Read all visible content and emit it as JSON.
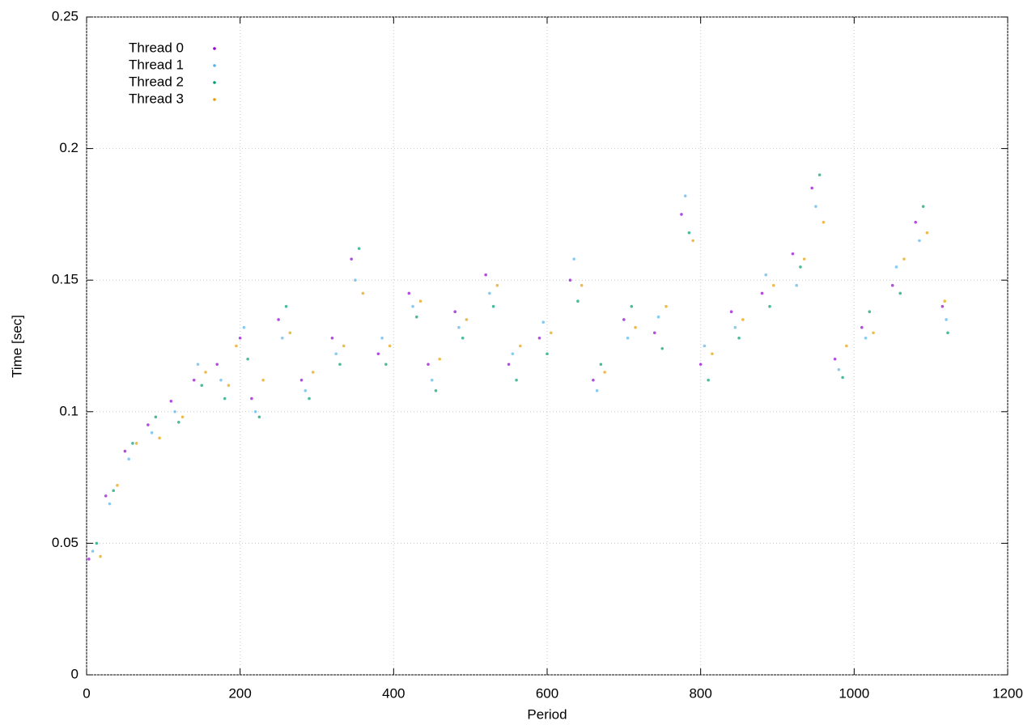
{
  "chart_data": {
    "type": "scatter",
    "xlabel": "Period",
    "ylabel": "Time [sec]",
    "xlim": [
      0,
      1200
    ],
    "ylim": [
      0,
      0.25
    ],
    "xticks": [
      0,
      200,
      400,
      600,
      800,
      1000,
      1200
    ],
    "yticks": [
      0,
      0.05,
      0.1,
      0.15,
      0.2,
      0.25
    ],
    "grid": true,
    "legend": "top-left",
    "series": [
      {
        "name": "Thread 0",
        "color": "#9400d3",
        "x": [
          3,
          25,
          50,
          80,
          110,
          140,
          170,
          200,
          215,
          250,
          280,
          320,
          345,
          380,
          420,
          445,
          480,
          520,
          550,
          590,
          630,
          660,
          700,
          740,
          775,
          800,
          840,
          880,
          920,
          945,
          975,
          1010,
          1050,
          1080,
          1115
        ],
        "values": [
          0.044,
          0.068,
          0.085,
          0.095,
          0.104,
          0.112,
          0.118,
          0.128,
          0.105,
          0.135,
          0.112,
          0.128,
          0.158,
          0.122,
          0.145,
          0.118,
          0.138,
          0.152,
          0.118,
          0.128,
          0.15,
          0.112,
          0.135,
          0.13,
          0.175,
          0.118,
          0.138,
          0.145,
          0.16,
          0.185,
          0.12,
          0.132,
          0.148,
          0.172,
          0.14
        ]
      },
      {
        "name": "Thread 1",
        "color": "#56b4e9",
        "x": [
          8,
          30,
          55,
          85,
          115,
          145,
          175,
          205,
          220,
          255,
          285,
          325,
          350,
          385,
          425,
          450,
          485,
          525,
          555,
          595,
          635,
          665,
          705,
          745,
          780,
          805,
          845,
          885,
          925,
          950,
          980,
          1015,
          1055,
          1085,
          1120
        ],
        "values": [
          0.047,
          0.065,
          0.082,
          0.092,
          0.1,
          0.118,
          0.112,
          0.132,
          0.1,
          0.128,
          0.108,
          0.122,
          0.15,
          0.128,
          0.14,
          0.112,
          0.132,
          0.145,
          0.122,
          0.134,
          0.158,
          0.108,
          0.128,
          0.136,
          0.182,
          0.125,
          0.132,
          0.152,
          0.148,
          0.178,
          0.116,
          0.128,
          0.155,
          0.165,
          0.135
        ]
      },
      {
        "name": "Thread 2",
        "color": "#009e73",
        "x": [
          13,
          35,
          60,
          90,
          120,
          150,
          180,
          210,
          225,
          260,
          290,
          330,
          355,
          390,
          430,
          455,
          490,
          530,
          560,
          600,
          640,
          670,
          710,
          750,
          785,
          810,
          850,
          890,
          930,
          955,
          985,
          1020,
          1060,
          1090,
          1122
        ],
        "values": [
          0.05,
          0.07,
          0.088,
          0.098,
          0.096,
          0.11,
          0.105,
          0.12,
          0.098,
          0.14,
          0.105,
          0.118,
          0.162,
          0.118,
          0.136,
          0.108,
          0.128,
          0.14,
          0.112,
          0.122,
          0.142,
          0.118,
          0.14,
          0.124,
          0.168,
          0.112,
          0.128,
          0.14,
          0.155,
          0.19,
          0.113,
          0.138,
          0.145,
          0.178,
          0.13
        ]
      },
      {
        "name": "Thread 3",
        "color": "#e69f00",
        "x": [
          18,
          40,
          65,
          95,
          125,
          155,
          185,
          195,
          230,
          265,
          295,
          335,
          360,
          395,
          435,
          460,
          495,
          535,
          565,
          605,
          645,
          675,
          715,
          755,
          790,
          815,
          855,
          895,
          935,
          960,
          990,
          1025,
          1065,
          1095,
          1118
        ],
        "values": [
          0.045,
          0.072,
          0.088,
          0.09,
          0.098,
          0.115,
          0.11,
          0.125,
          0.112,
          0.13,
          0.115,
          0.125,
          0.145,
          0.125,
          0.142,
          0.12,
          0.135,
          0.148,
          0.125,
          0.13,
          0.148,
          0.115,
          0.132,
          0.14,
          0.165,
          0.122,
          0.135,
          0.148,
          0.158,
          0.172,
          0.125,
          0.13,
          0.158,
          0.168,
          0.142
        ]
      }
    ]
  }
}
